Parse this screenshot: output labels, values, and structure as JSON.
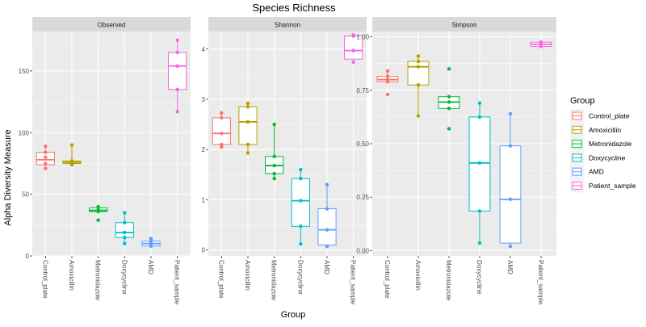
{
  "chart_data": {
    "type": "box",
    "title": "Species Richness",
    "xlabel": "Group",
    "ylabel": "Alpha Diversity Measure",
    "categories": [
      "Control_plate",
      "Amoxicillin",
      "Metronidazole",
      "Doxycycline",
      "AMD",
      "Patient_sample"
    ],
    "colors": {
      "Control_plate": "#F8766D",
      "Amoxicillin": "#B79F00",
      "Metronidazole": "#00BA38",
      "Doxycycline": "#00BFC4",
      "AMD": "#619CFF",
      "Patient_sample": "#F564E3"
    },
    "legend": {
      "title": "Group",
      "position": "right",
      "entries": [
        "Control_plate",
        "Amoxicillin",
        "Metronidazole",
        "Doxycycline",
        "AMD",
        "Patient_sample"
      ]
    },
    "panel_background": "#EBEBEB",
    "strip_background": "#D9D9D9",
    "grid": true,
    "panels": [
      {
        "strip": "Observed",
        "ylim": [
          0,
          182
        ],
        "yticks": [
          0,
          50,
          100,
          150
        ],
        "ytick_labels": [
          "0",
          "50",
          "100",
          "150"
        ],
        "boxes": [
          {
            "group": "Control_plate",
            "q1": 74,
            "median": 78,
            "q3": 84,
            "whisker_low": 71,
            "whisker_high": 89,
            "points": [
              71,
              75,
              80,
              84,
              89
            ]
          },
          {
            "group": "Amoxicillin",
            "q1": 75,
            "median": 76,
            "q3": 77,
            "whisker_low": 74,
            "whisker_high": 90,
            "points": [
              74,
              75,
              76,
              77,
              90
            ]
          },
          {
            "group": "Metronidazole",
            "q1": 36,
            "median": 37,
            "q3": 39,
            "whisker_low": 36,
            "whisker_high": 39,
            "points": [
              29,
              36,
              37,
              39,
              40
            ]
          },
          {
            "group": "Doxycycline",
            "q1": 15,
            "median": 19,
            "q3": 27,
            "whisker_low": 10,
            "whisker_high": 34,
            "points": [
              10,
              15,
              19,
              27,
              35
            ]
          },
          {
            "group": "AMD",
            "q1": 8,
            "median": 10,
            "q3": 12,
            "whisker_low": 8,
            "whisker_high": 13,
            "points": [
              8,
              10,
              12,
              14
            ]
          },
          {
            "group": "Patient_sample",
            "q1": 135,
            "median": 154,
            "q3": 165,
            "whisker_low": 117,
            "whisker_high": 175,
            "points": [
              117,
              135,
              154,
              165,
              175
            ]
          }
        ]
      },
      {
        "strip": "Shannon",
        "ylim": [
          -0.12,
          4.35
        ],
        "yticks": [
          0,
          1,
          2,
          3,
          4
        ],
        "ytick_labels": [
          "0",
          "1",
          "2",
          "3",
          "4"
        ],
        "boxes": [
          {
            "group": "Control_plate",
            "q1": 2.1,
            "median": 2.32,
            "q3": 2.63,
            "whisker_low": 2.05,
            "whisker_high": 2.73,
            "points": [
              2.05,
              2.1,
              2.32,
              2.63,
              2.73
            ]
          },
          {
            "group": "Amoxicillin",
            "q1": 2.1,
            "median": 2.55,
            "q3": 2.85,
            "whisker_low": 1.93,
            "whisker_high": 2.92,
            "points": [
              1.93,
              2.1,
              2.55,
              2.85,
              2.92
            ]
          },
          {
            "group": "Metronidazole",
            "q1": 1.52,
            "median": 1.68,
            "q3": 1.86,
            "whisker_low": 1.42,
            "whisker_high": 2.5,
            "points": [
              1.42,
              1.52,
              1.68,
              1.86,
              2.5
            ]
          },
          {
            "group": "Doxycycline",
            "q1": 0.47,
            "median": 0.98,
            "q3": 1.42,
            "whisker_low": 0.12,
            "whisker_high": 1.6,
            "points": [
              0.12,
              0.47,
              0.98,
              1.42,
              1.6
            ]
          },
          {
            "group": "AMD",
            "q1": 0.1,
            "median": 0.4,
            "q3": 0.82,
            "whisker_low": 0.07,
            "whisker_high": 1.3,
            "points": [
              0.07,
              0.4,
              0.82,
              1.3
            ]
          },
          {
            "group": "Patient_sample",
            "q1": 3.8,
            "median": 3.97,
            "q3": 4.26,
            "whisker_low": 3.74,
            "whisker_high": 4.28,
            "points": [
              3.74,
              3.97,
              4.26,
              4.28
            ]
          }
        ]
      },
      {
        "strip": "Simpson",
        "ylim": [
          -0.025,
          1.025
        ],
        "yticks": [
          0,
          0.25,
          0.5,
          0.75,
          1
        ],
        "ytick_labels": [
          "0.00",
          "0.25",
          "0.50",
          "0.75",
          "1.00"
        ],
        "boxes": [
          {
            "group": "Control_plate",
            "q1": 0.79,
            "median": 0.8,
            "q3": 0.815,
            "whisker_low": 0.79,
            "whisker_high": 0.84,
            "points": [
              0.73,
              0.79,
              0.8,
              0.815,
              0.84
            ]
          },
          {
            "group": "Amoxicillin",
            "q1": 0.775,
            "median": 0.86,
            "q3": 0.885,
            "whisker_low": 0.63,
            "whisker_high": 0.91,
            "points": [
              0.63,
              0.775,
              0.86,
              0.885,
              0.91
            ]
          },
          {
            "group": "Metronidazole",
            "q1": 0.665,
            "median": 0.695,
            "q3": 0.72,
            "whisker_low": 0.665,
            "whisker_high": 0.72,
            "points": [
              0.57,
              0.665,
              0.695,
              0.72,
              0.85
            ]
          },
          {
            "group": "Doxycycline",
            "q1": 0.185,
            "median": 0.41,
            "q3": 0.625,
            "whisker_low": 0.035,
            "whisker_high": 0.69,
            "points": [
              0.035,
              0.185,
              0.41,
              0.625,
              0.69
            ]
          },
          {
            "group": "AMD",
            "q1": 0.035,
            "median": 0.24,
            "q3": 0.49,
            "whisker_low": 0.02,
            "whisker_high": 0.64,
            "points": [
              0.02,
              0.24,
              0.49,
              0.64
            ]
          },
          {
            "group": "Patient_sample",
            "q1": 0.955,
            "median": 0.965,
            "q3": 0.975,
            "whisker_low": 0.955,
            "whisker_high": 0.975,
            "points": [
              0.955,
              0.965,
              0.975
            ]
          }
        ]
      }
    ]
  }
}
